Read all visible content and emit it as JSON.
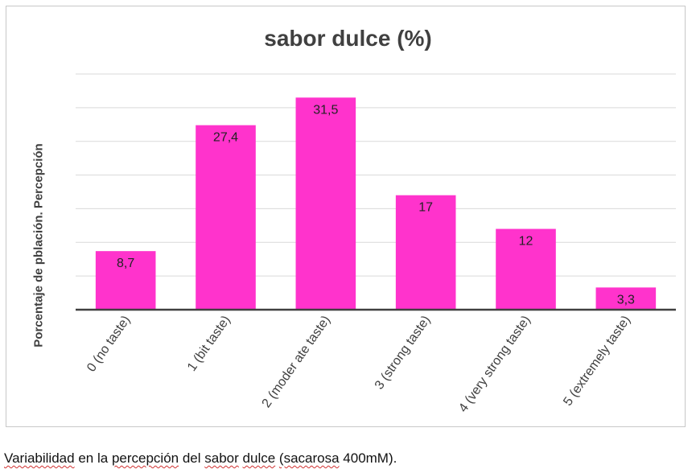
{
  "chart_data": {
    "type": "bar",
    "title": "sabor dulce (%)",
    "ylabel": "Porcentaje de pblación. Percepción",
    "xlabel": "",
    "categories": [
      "0 (no taste)",
      "1 (bit taste)",
      "2 (moder ate taste)",
      "3 (strong taste)",
      "4 (very strong taste)",
      "5 (extremely taste)"
    ],
    "values": [
      8.7,
      27.4,
      31.5,
      17,
      12,
      3.3
    ],
    "data_labels": [
      "8,7",
      "27,4",
      "31,5",
      "17",
      "12",
      "3,3"
    ],
    "ylim": [
      0,
      35
    ],
    "grid": true,
    "bar_color": "#ff33cc"
  },
  "caption": {
    "words": [
      "Variabilidad",
      "en",
      "la",
      "percepción",
      "del",
      "sabor",
      "dulce",
      "(sacarosa",
      "400mM)."
    ]
  }
}
